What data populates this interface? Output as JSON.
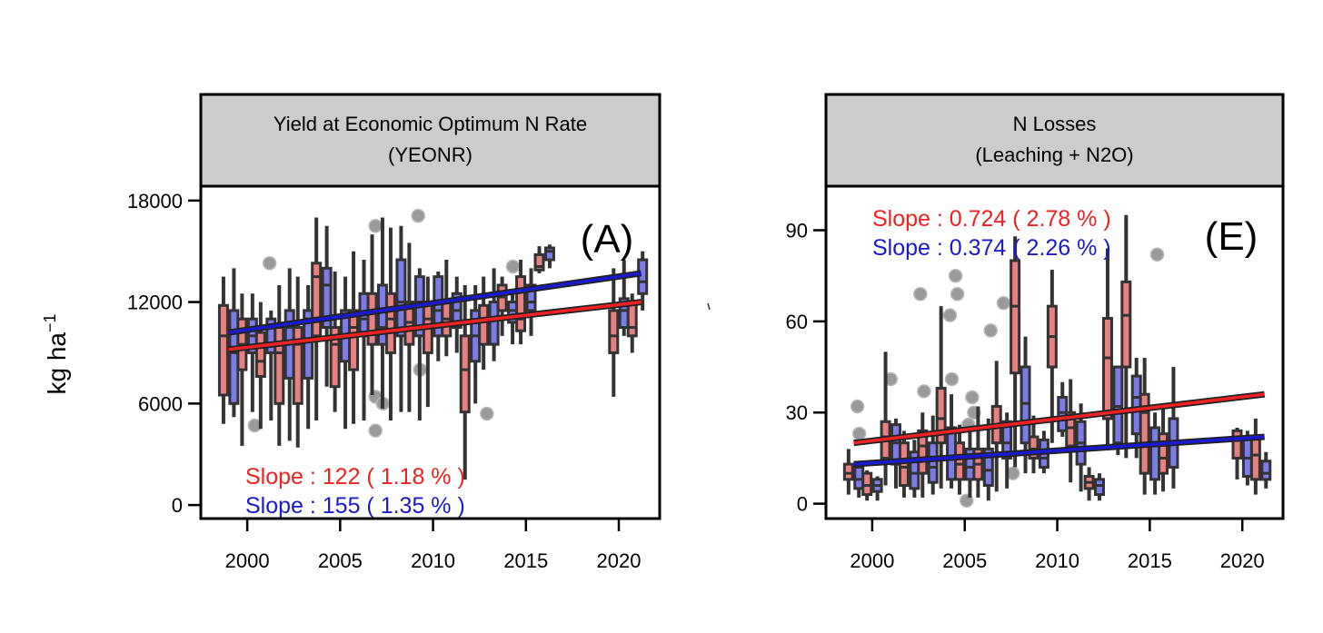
{
  "colors": {
    "series_a": "#ee2222",
    "series_b": "#1a1acc",
    "box_a": "#e88080",
    "box_b": "#7b7bea",
    "outlier": "#9a9a9a",
    "header_bg": "#cccccc"
  },
  "ylabel": "kg ha",
  "ylabel_sup": "−1",
  "chart_data": [
    {
      "type": "box",
      "panel_id": "A",
      "panel_tag": "(A)",
      "title_line1": "Yield at Economic Optimum N Rate",
      "title_line2": "(YEONR)",
      "xlim": [
        1997.5,
        2022.2
      ],
      "ylim": [
        -800,
        18850
      ],
      "xticks": [
        2000,
        2005,
        2010,
        2015,
        2020
      ],
      "yticks": [
        0,
        6000,
        12000,
        18000
      ],
      "slope_a": "Slope : 122 ( 1.18 % )",
      "slope_b": "Slope : 155 ( 1.35 % )",
      "trend_a": [
        [
          1999,
          9200
        ],
        [
          2021.2,
          12000
        ]
      ],
      "trend_b": [
        [
          1999,
          10200
        ],
        [
          2021.2,
          13700
        ]
      ],
      "years": [
        1999,
        2000,
        2001,
        2002,
        2003,
        2004,
        2005,
        2006,
        2007,
        2008,
        2009,
        2010,
        2011,
        2012,
        2013,
        2014,
        2015,
        2016,
        2020,
        2021
      ],
      "boxes_a": [
        [
          4800,
          6500,
          10000,
          11800,
          13500
        ],
        [
          3500,
          8000,
          9500,
          11000,
          12500
        ],
        [
          4500,
          7600,
          8500,
          10200,
          12000
        ],
        [
          3500,
          6000,
          9000,
          10500,
          13000
        ],
        [
          3400,
          6000,
          9500,
          10500,
          13500
        ],
        [
          5000,
          10000,
          13500,
          14300,
          17000
        ],
        [
          5500,
          7000,
          9500,
          10500,
          13800
        ],
        [
          4800,
          8000,
          10500,
          11500,
          15000
        ],
        [
          6500,
          9500,
          11500,
          12500,
          16000
        ],
        [
          5000,
          9000,
          11000,
          12500,
          16400
        ],
        [
          5500,
          9500,
          10800,
          12000,
          15500
        ],
        [
          5800,
          9000,
          11000,
          12000,
          13500
        ],
        [
          8800,
          10000,
          11000,
          12000,
          14500
        ],
        [
          1500,
          5500,
          8000,
          10000,
          13000
        ],
        [
          8000,
          9500,
          11000,
          11800,
          13500
        ],
        [
          10000,
          11500,
          12300,
          13000,
          13500
        ],
        [
          9500,
          10300,
          11000,
          13500,
          14500
        ],
        [
          13700,
          13900,
          14100,
          14800,
          15300
        ],
        [
          6400,
          9000,
          10000,
          11500,
          14000
        ],
        [
          9000,
          10000,
          10500,
          12000,
          12500
        ]
      ],
      "boxes_b": [
        [
          5200,
          6000,
          9000,
          11500,
          14000
        ],
        [
          5500,
          9000,
          10000,
          11000,
          12500
        ],
        [
          5000,
          9000,
          9500,
          11000,
          11500
        ],
        [
          3800,
          7500,
          10500,
          11500,
          14000
        ],
        [
          4500,
          7500,
          11000,
          11500,
          13000
        ],
        [
          7000,
          10500,
          13000,
          14000,
          16500
        ],
        [
          4500,
          8500,
          10000,
          11500,
          13500
        ],
        [
          5000,
          10000,
          11000,
          12500,
          14500
        ],
        [
          5700,
          9500,
          10500,
          13000,
          17000
        ],
        [
          5500,
          10000,
          12000,
          14500,
          16500
        ],
        [
          5000,
          10000,
          12000,
          13500,
          14000
        ],
        [
          8500,
          10000,
          11500,
          13500,
          13800
        ],
        [
          9000,
          10500,
          11500,
          12500,
          13500
        ],
        [
          6000,
          8500,
          10000,
          11500,
          13000
        ],
        [
          8500,
          9500,
          11000,
          12000,
          14000
        ],
        [
          9500,
          10800,
          11500,
          12000,
          12500
        ],
        [
          10000,
          11500,
          12000,
          13000,
          14000
        ],
        [
          14000,
          14500,
          15000,
          15200,
          15400
        ],
        [
          10000,
          10500,
          11500,
          12200,
          14500
        ],
        [
          11500,
          12500,
          13200,
          14500,
          15000
        ]
      ],
      "outliers": [
        [
          2001.2,
          14300
        ],
        [
          2000.4,
          4700
        ],
        [
          2006.9,
          16500
        ],
        [
          2009.2,
          17100
        ],
        [
          2006.9,
          6400
        ],
        [
          2007.3,
          6000
        ],
        [
          2006.9,
          4400
        ],
        [
          2009.3,
          8000
        ],
        [
          2014.3,
          14100
        ],
        [
          2012.9,
          5400
        ]
      ]
    },
    {
      "type": "box",
      "panel_id": "E",
      "panel_tag": "(E)",
      "title_line1": "N Losses",
      "title_line2": "(Leaching + N2O)",
      "xlim": [
        1997.5,
        2022.2
      ],
      "ylim": [
        -4.9,
        104.5
      ],
      "xticks": [
        2000,
        2005,
        2010,
        2015,
        2020
      ],
      "yticks": [
        0,
        30,
        60,
        90
      ],
      "slope_a": "Slope : 0.724 ( 2.78 % )",
      "slope_b": "Slope : 0.374 ( 2.26 % )",
      "trend_a": [
        [
          1999,
          20
        ],
        [
          2021.2,
          36
        ]
      ],
      "trend_b": [
        [
          1999,
          13
        ],
        [
          2021.2,
          22
        ]
      ],
      "years": [
        1999,
        2000,
        2001,
        2002,
        2003,
        2004,
        2005,
        2006,
        2007,
        2008,
        2009,
        2010,
        2011,
        2012,
        2013,
        2014,
        2015,
        2016,
        2020,
        2021
      ],
      "boxes_a": [
        [
          3,
          8,
          10,
          13,
          18
        ],
        [
          1,
          3,
          6,
          10,
          11
        ],
        [
          6,
          15,
          22,
          27,
          50
        ],
        [
          2,
          6,
          12,
          20,
          24
        ],
        [
          2,
          10,
          19,
          24,
          30
        ],
        [
          5,
          20,
          28,
          38,
          65
        ],
        [
          3,
          8,
          13,
          20,
          26
        ],
        [
          2,
          8,
          13,
          18,
          32
        ],
        [
          4,
          20,
          26,
          32,
          47
        ],
        [
          12,
          43,
          65,
          80,
          88
        ],
        [
          10,
          15,
          18,
          22,
          29
        ],
        [
          20,
          45,
          55,
          65,
          77
        ],
        [
          7,
          19,
          25,
          30,
          41
        ],
        [
          1,
          5,
          7,
          9,
          12
        ],
        [
          18,
          28,
          48,
          61,
          84
        ],
        [
          15,
          45,
          62,
          73,
          95
        ],
        [
          3,
          10,
          30,
          36,
          48
        ],
        [
          4,
          10,
          15,
          23,
          33
        ],
        [
          8,
          15,
          22,
          24,
          25
        ],
        [
          3,
          8,
          16,
          22,
          28
        ]
      ],
      "boxes_b": [
        [
          2,
          5,
          8,
          12,
          14
        ],
        [
          1,
          4,
          6,
          8,
          9
        ],
        [
          5,
          13,
          20,
          26,
          28
        ],
        [
          2,
          5,
          10,
          17,
          21
        ],
        [
          3,
          7,
          12,
          20,
          29
        ],
        [
          5,
          8,
          15,
          25,
          36
        ],
        [
          2,
          8,
          12,
          18,
          24
        ],
        [
          1,
          6,
          11,
          18,
          28
        ],
        [
          5,
          15,
          20,
          27,
          30
        ],
        [
          10,
          20,
          33,
          45,
          55
        ],
        [
          10,
          12,
          15,
          21,
          24
        ],
        [
          22,
          24,
          30,
          35,
          40
        ],
        [
          4,
          13,
          20,
          27,
          33
        ],
        [
          1,
          3,
          6,
          8,
          10
        ],
        [
          16,
          20,
          32,
          45,
          45
        ],
        [
          15,
          23,
          35,
          42,
          48
        ],
        [
          3,
          8,
          20,
          25,
          30
        ],
        [
          5,
          12,
          20,
          28,
          45
        ],
        [
          6,
          9,
          15,
          22,
          24
        ],
        [
          5,
          8,
          10,
          14,
          17
        ]
      ],
      "outliers": [
        [
          1999.2,
          32
        ],
        [
          1999.3,
          23
        ],
        [
          2001,
          41
        ],
        [
          2002.6,
          69
        ],
        [
          2002.8,
          37
        ],
        [
          2004.2,
          62
        ],
        [
          2004.3,
          41
        ],
        [
          2004.5,
          75
        ],
        [
          2004.6,
          69
        ],
        [
          2005.1,
          1
        ],
        [
          2005.2,
          26
        ],
        [
          2005.4,
          35
        ],
        [
          2005.5,
          30
        ],
        [
          2005.6,
          10
        ],
        [
          2006.4,
          57
        ],
        [
          2007.1,
          66
        ],
        [
          2007.6,
          10
        ],
        [
          2013.1,
          43
        ],
        [
          2015.4,
          82
        ]
      ]
    }
  ]
}
